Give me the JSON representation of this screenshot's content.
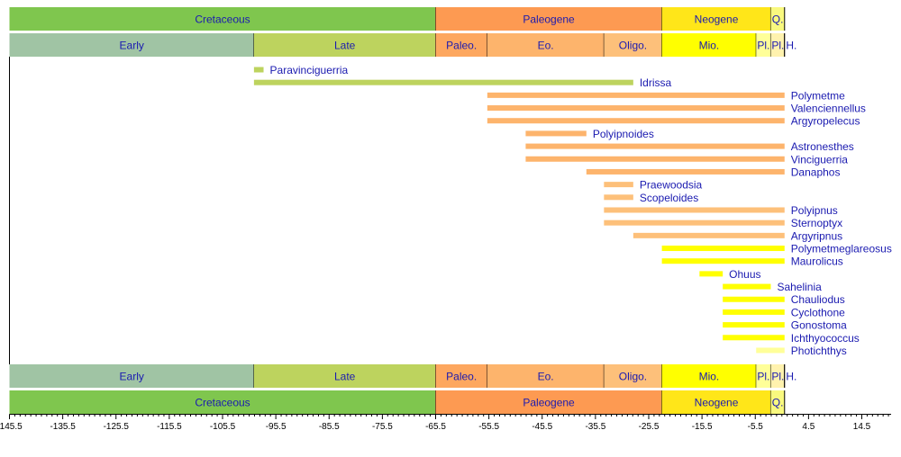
{
  "chart_data": {
    "type": "timeline",
    "title": "",
    "xlim": [
      -145.5,
      20
    ],
    "xticks": [
      -145.5,
      -135.5,
      -125.5,
      -115.5,
      -105.5,
      -95.5,
      -85.5,
      -75.5,
      -65.5,
      -55.5,
      -45.5,
      -35.5,
      -25.5,
      -15.5,
      -5.5,
      4.5,
      14.5
    ],
    "periods": [
      {
        "name": "Cretaceous",
        "start": -145.5,
        "end": -65.5,
        "color": "#7fc64e"
      },
      {
        "name": "Paleogene",
        "start": -65.5,
        "end": -23.03,
        "color": "#fd9a52"
      },
      {
        "name": "Neogene",
        "start": -23.03,
        "end": -2.588,
        "color": "#ffe619"
      },
      {
        "name": "Q.",
        "start": -2.588,
        "end": 0,
        "color": "#f9f97f"
      }
    ],
    "epochs": [
      {
        "name": "Early",
        "start": -145.5,
        "end": -99.6,
        "color": "#a0c4a4"
      },
      {
        "name": "Late",
        "start": -99.6,
        "end": -65.5,
        "color": "#bdd35e"
      },
      {
        "name": "Paleo.",
        "start": -65.5,
        "end": -55.8,
        "color": "#fda75f"
      },
      {
        "name": "Eo.",
        "start": -55.8,
        "end": -33.9,
        "color": "#fdb46c"
      },
      {
        "name": "Oligo.",
        "start": -33.9,
        "end": -23.03,
        "color": "#fdc07a"
      },
      {
        "name": "Mio.",
        "start": -23.03,
        "end": -5.332,
        "color": "#ffff00"
      },
      {
        "name": "Pl.",
        "start": -5.332,
        "end": -2.588,
        "color": "#ffff99"
      },
      {
        "name": "Pl.",
        "start": -2.588,
        "end": -0.0117,
        "color": "#fff2ae"
      },
      {
        "name": "H.",
        "start": -0.0117,
        "end": 0,
        "color": "#feebd2"
      }
    ],
    "taxa": [
      {
        "name": "Paravinciguerria",
        "start": -99.6,
        "end": -97.8,
        "color": "#bdd35e"
      },
      {
        "name": "Idrissa",
        "start": -99.6,
        "end": -28.4,
        "color": "#bdd35e"
      },
      {
        "name": "Polymetme",
        "start": -55.8,
        "end": 0,
        "color": "#fdb46c"
      },
      {
        "name": "Valenciennellus",
        "start": -55.8,
        "end": 0,
        "color": "#fdb46c"
      },
      {
        "name": "Argyropelecus",
        "start": -55.8,
        "end": 0,
        "color": "#fdb46c"
      },
      {
        "name": "Polyipnoides",
        "start": -48.6,
        "end": -37.2,
        "color": "#fdb46c"
      },
      {
        "name": "Astronesthes",
        "start": -48.6,
        "end": 0,
        "color": "#fdb46c"
      },
      {
        "name": "Vinciguerria",
        "start": -48.6,
        "end": 0,
        "color": "#fdb46c"
      },
      {
        "name": "Danaphos",
        "start": -37.2,
        "end": 0,
        "color": "#fdb46c"
      },
      {
        "name": "Praewoodsia",
        "start": -33.9,
        "end": -28.4,
        "color": "#fdc07a"
      },
      {
        "name": "Scopeloides",
        "start": -33.9,
        "end": -28.4,
        "color": "#fdc07a"
      },
      {
        "name": "Polyipnus",
        "start": -33.9,
        "end": 0,
        "color": "#fdc07a"
      },
      {
        "name": "Sternoptyx",
        "start": -33.9,
        "end": 0,
        "color": "#fdc07a"
      },
      {
        "name": "Argyripnus",
        "start": -28.4,
        "end": 0,
        "color": "#fdc07a"
      },
      {
        "name": "Polymetmeglareosus",
        "start": -23.03,
        "end": 0,
        "color": "#ffff00"
      },
      {
        "name": "Maurolicus",
        "start": -23.03,
        "end": 0,
        "color": "#ffff00"
      },
      {
        "name": "Ohuus",
        "start": -15.97,
        "end": -11.6,
        "color": "#ffff00"
      },
      {
        "name": "Sahelinia",
        "start": -11.6,
        "end": -2.588,
        "color": "#ffff00"
      },
      {
        "name": "Chauliodus",
        "start": -11.6,
        "end": 0,
        "color": "#ffff00"
      },
      {
        "name": "Cyclothone",
        "start": -11.6,
        "end": 0,
        "color": "#ffff00"
      },
      {
        "name": "Gonostoma",
        "start": -11.6,
        "end": 0,
        "color": "#ffff00"
      },
      {
        "name": "Ichthyococcus",
        "start": -11.6,
        "end": 0,
        "color": "#ffff00"
      },
      {
        "name": "Photichthys",
        "start": -5.332,
        "end": 0,
        "color": "#ffff99"
      }
    ],
    "label_color": "#1a1ab0"
  }
}
